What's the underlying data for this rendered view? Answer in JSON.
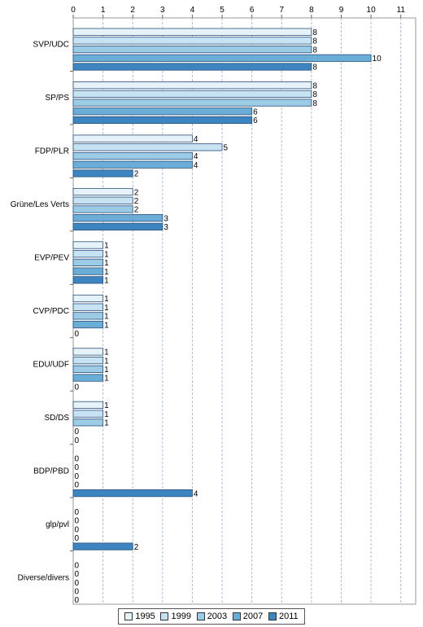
{
  "chart_data": {
    "type": "bar",
    "orientation": "horizontal",
    "title": "",
    "xlabel": "",
    "ylabel": "",
    "xlim": [
      0,
      11.5
    ],
    "x_ticks": [
      0,
      1,
      2,
      3,
      4,
      5,
      6,
      7,
      8,
      9,
      10,
      11
    ],
    "x_axis_position": "top",
    "grid": true,
    "legend_position": "bottom",
    "categories": [
      "SVP/UDC",
      "SP/PS",
      "FDP/PLR",
      "Grüne/Les Verts",
      "EVP/PEV",
      "CVP/PDC",
      "EDU/UDF",
      "SD/DS",
      "BDP/PBD",
      "glp/pvl",
      "Diverse/divers"
    ],
    "series": [
      {
        "name": "1995",
        "color": "#e6f2fa",
        "values": [
          8,
          8,
          4,
          2,
          1,
          1,
          1,
          1,
          0,
          0,
          0
        ]
      },
      {
        "name": "1999",
        "color": "#c7e2f2",
        "values": [
          8,
          8,
          5,
          2,
          1,
          1,
          1,
          1,
          0,
          0,
          0
        ]
      },
      {
        "name": "2003",
        "color": "#9ccbe6",
        "values": [
          8,
          8,
          4,
          2,
          1,
          1,
          1,
          1,
          0,
          0,
          0
        ]
      },
      {
        "name": "2007",
        "color": "#6aaed8",
        "values": [
          10,
          6,
          4,
          3,
          1,
          1,
          1,
          0,
          0,
          0,
          0
        ]
      },
      {
        "name": "2011",
        "color": "#3d85c0",
        "values": [
          8,
          6,
          2,
          3,
          1,
          0,
          0,
          0,
          4,
          2,
          0
        ]
      }
    ]
  }
}
